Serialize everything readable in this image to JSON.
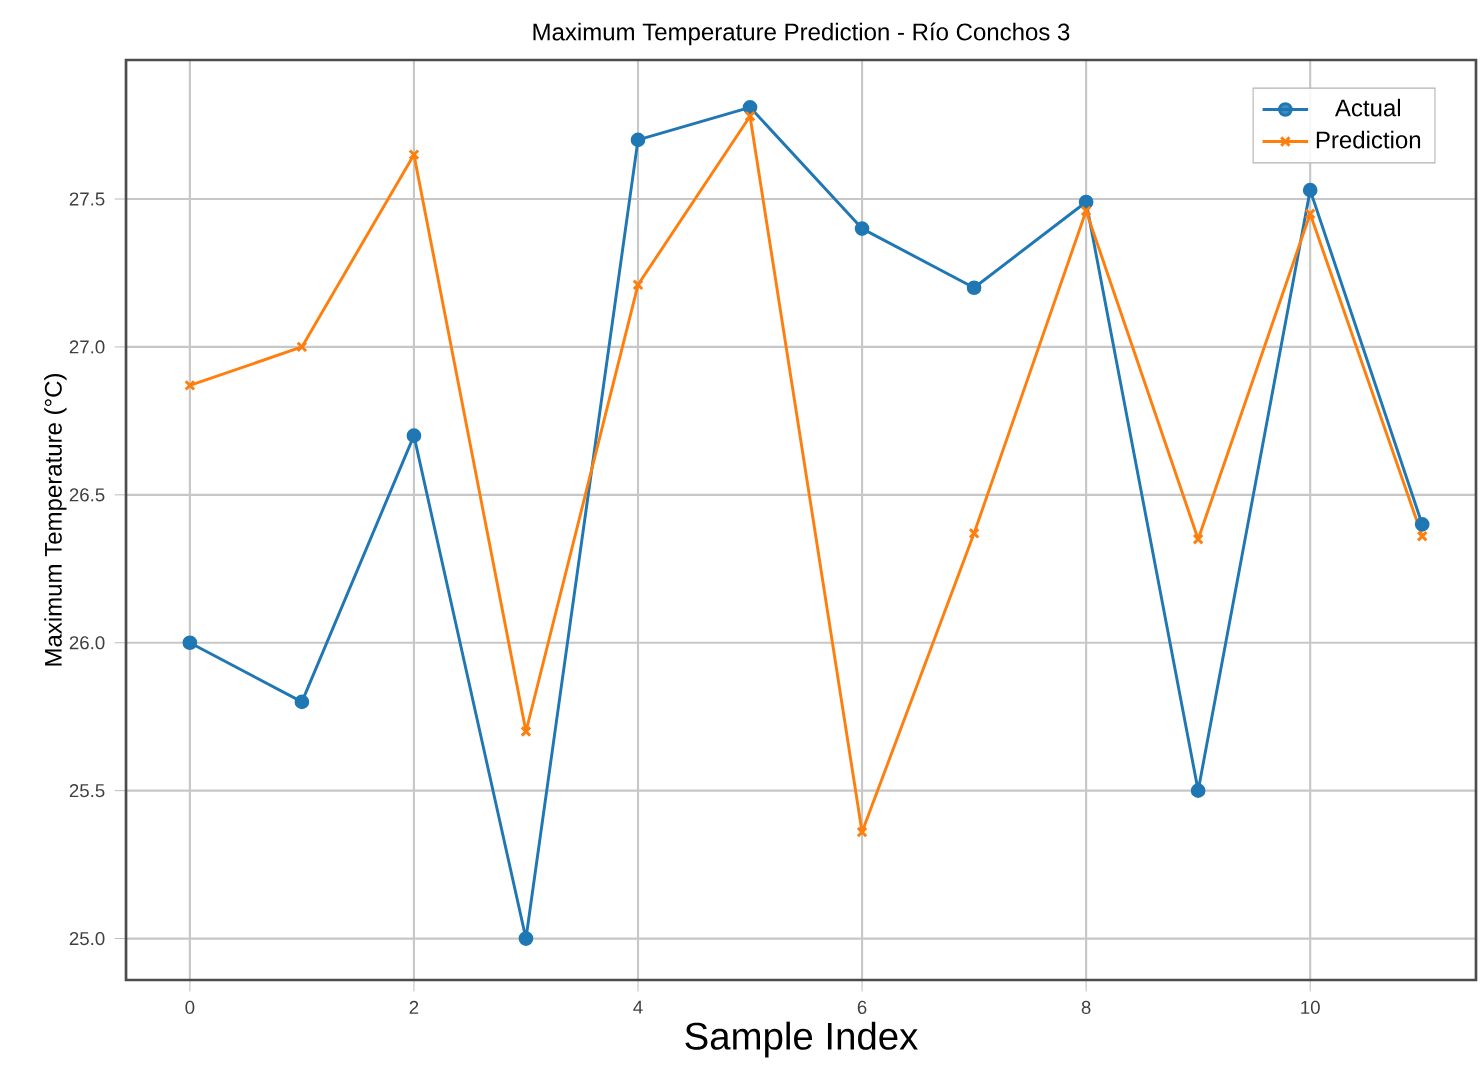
{
  "chart_data": {
    "type": "line",
    "title": "Maximum Temperature Prediction - Río Conchos 3",
    "xlabel": "Sample Index",
    "ylabel": "Maximum Temperature (°C)",
    "x": [
      0,
      1,
      2,
      3,
      4,
      5,
      6,
      7,
      8,
      9,
      10,
      11
    ],
    "series": [
      {
        "name": "Actual",
        "color": "#1f77b4",
        "marker": "circle",
        "values": [
          26.0,
          25.8,
          26.7,
          25.0,
          27.7,
          27.81,
          27.4,
          27.2,
          27.49,
          25.5,
          27.53,
          26.4
        ]
      },
      {
        "name": "Prediction",
        "color": "#ff7f0e",
        "marker": "cross",
        "values": [
          26.87,
          27.0,
          27.65,
          25.7,
          27.21,
          27.78,
          25.36,
          26.37,
          27.46,
          26.35,
          27.45,
          26.36
        ]
      }
    ],
    "xlim": [
      -0.57,
      11.48
    ],
    "ylim": [
      24.86,
      27.97
    ],
    "xticks": [
      0,
      2,
      4,
      6,
      8,
      10
    ],
    "yticks": [
      {
        "value": 25,
        "label": "25.0"
      },
      {
        "value": 25.5,
        "label": "25.5"
      },
      {
        "value": 26,
        "label": "26.0"
      },
      {
        "value": 26.5,
        "label": "26.5"
      },
      {
        "value": 27,
        "label": "27.0"
      },
      {
        "value": 27.5,
        "label": "27.5"
      }
    ],
    "grid": true,
    "legend": "top right",
    "line_style": "solid"
  }
}
